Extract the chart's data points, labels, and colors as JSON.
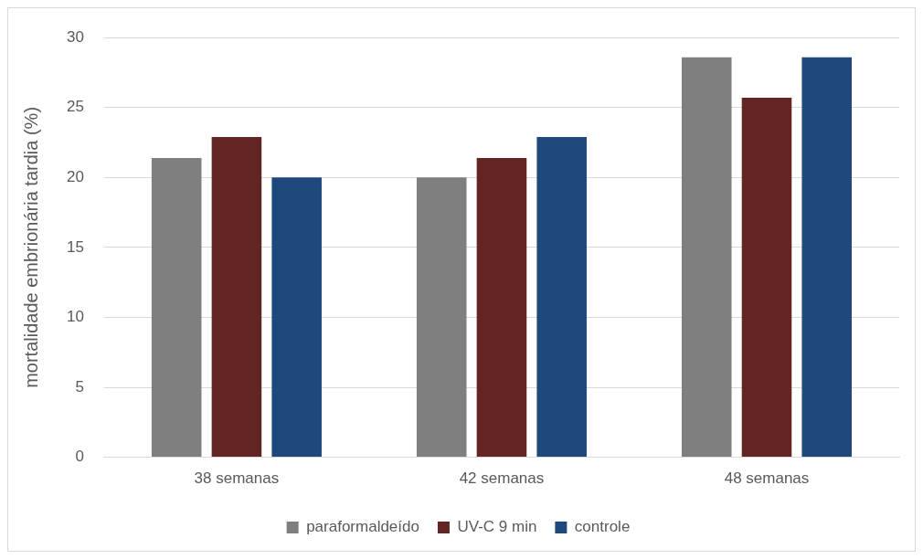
{
  "chart_data": {
    "type": "bar",
    "ylabel": "mortalidade embrionária tardia (%)",
    "categories": [
      "38 semanas",
      "42 semanas",
      "48 semanas"
    ],
    "series": [
      {
        "name": "paraformaldeído",
        "color": "#7f7f7f",
        "values": [
          21.4,
          20.0,
          28.6
        ]
      },
      {
        "name": "UV-C 9 min",
        "color": "#632523",
        "values": [
          22.9,
          21.4,
          25.7
        ]
      },
      {
        "name": "controle",
        "color": "#1f497d",
        "values": [
          20.0,
          22.9,
          28.6
        ]
      }
    ],
    "ylim": [
      0,
      30
    ],
    "yticks": [
      0,
      5,
      10,
      15,
      20,
      25,
      30
    ],
    "grid": "y",
    "legend": "bottom"
  }
}
